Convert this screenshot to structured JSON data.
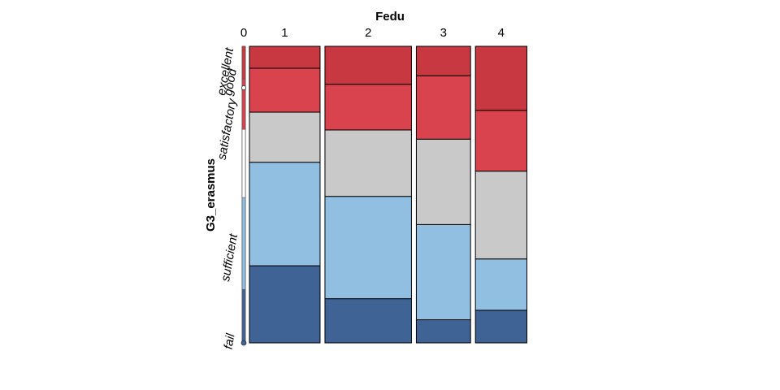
{
  "chart_data": {
    "type": "mosaic",
    "title": "",
    "xlabel": "Fedu",
    "ylabel": "G3_erasmus",
    "categories": [
      "0",
      "1",
      "2",
      "3",
      "4"
    ],
    "column_widths": [
      0,
      0.258,
      0.316,
      0.198,
      0.188
    ],
    "levels_bottom_to_top": [
      "fail",
      "sufficient",
      "satisfactory",
      "good",
      "excellent"
    ],
    "colors": {
      "fail": "#3f6394",
      "sufficient": "#91bfe2",
      "satisfactory": "#c9c9c9",
      "good": "#d9434d",
      "excellent": "#c83841"
    },
    "series": [
      {
        "name": "fail",
        "values": [
          1.0,
          0.26,
          0.149,
          0.078,
          0.11
        ]
      },
      {
        "name": "sufficient",
        "values": [
          0.0,
          0.349,
          0.345,
          0.321,
          0.173
        ]
      },
      {
        "name": "satisfactory",
        "values": [
          0.0,
          0.169,
          0.224,
          0.288,
          0.296
        ]
      },
      {
        "name": "good",
        "values": [
          0.0,
          0.148,
          0.154,
          0.214,
          0.205
        ]
      },
      {
        "name": "excellent",
        "values": [
          0.0,
          0.074,
          0.128,
          0.099,
          0.216
        ]
      }
    ],
    "overall_proportions": [
      0.18,
      0.31,
      0.23,
      0.17,
      0.11
    ]
  }
}
